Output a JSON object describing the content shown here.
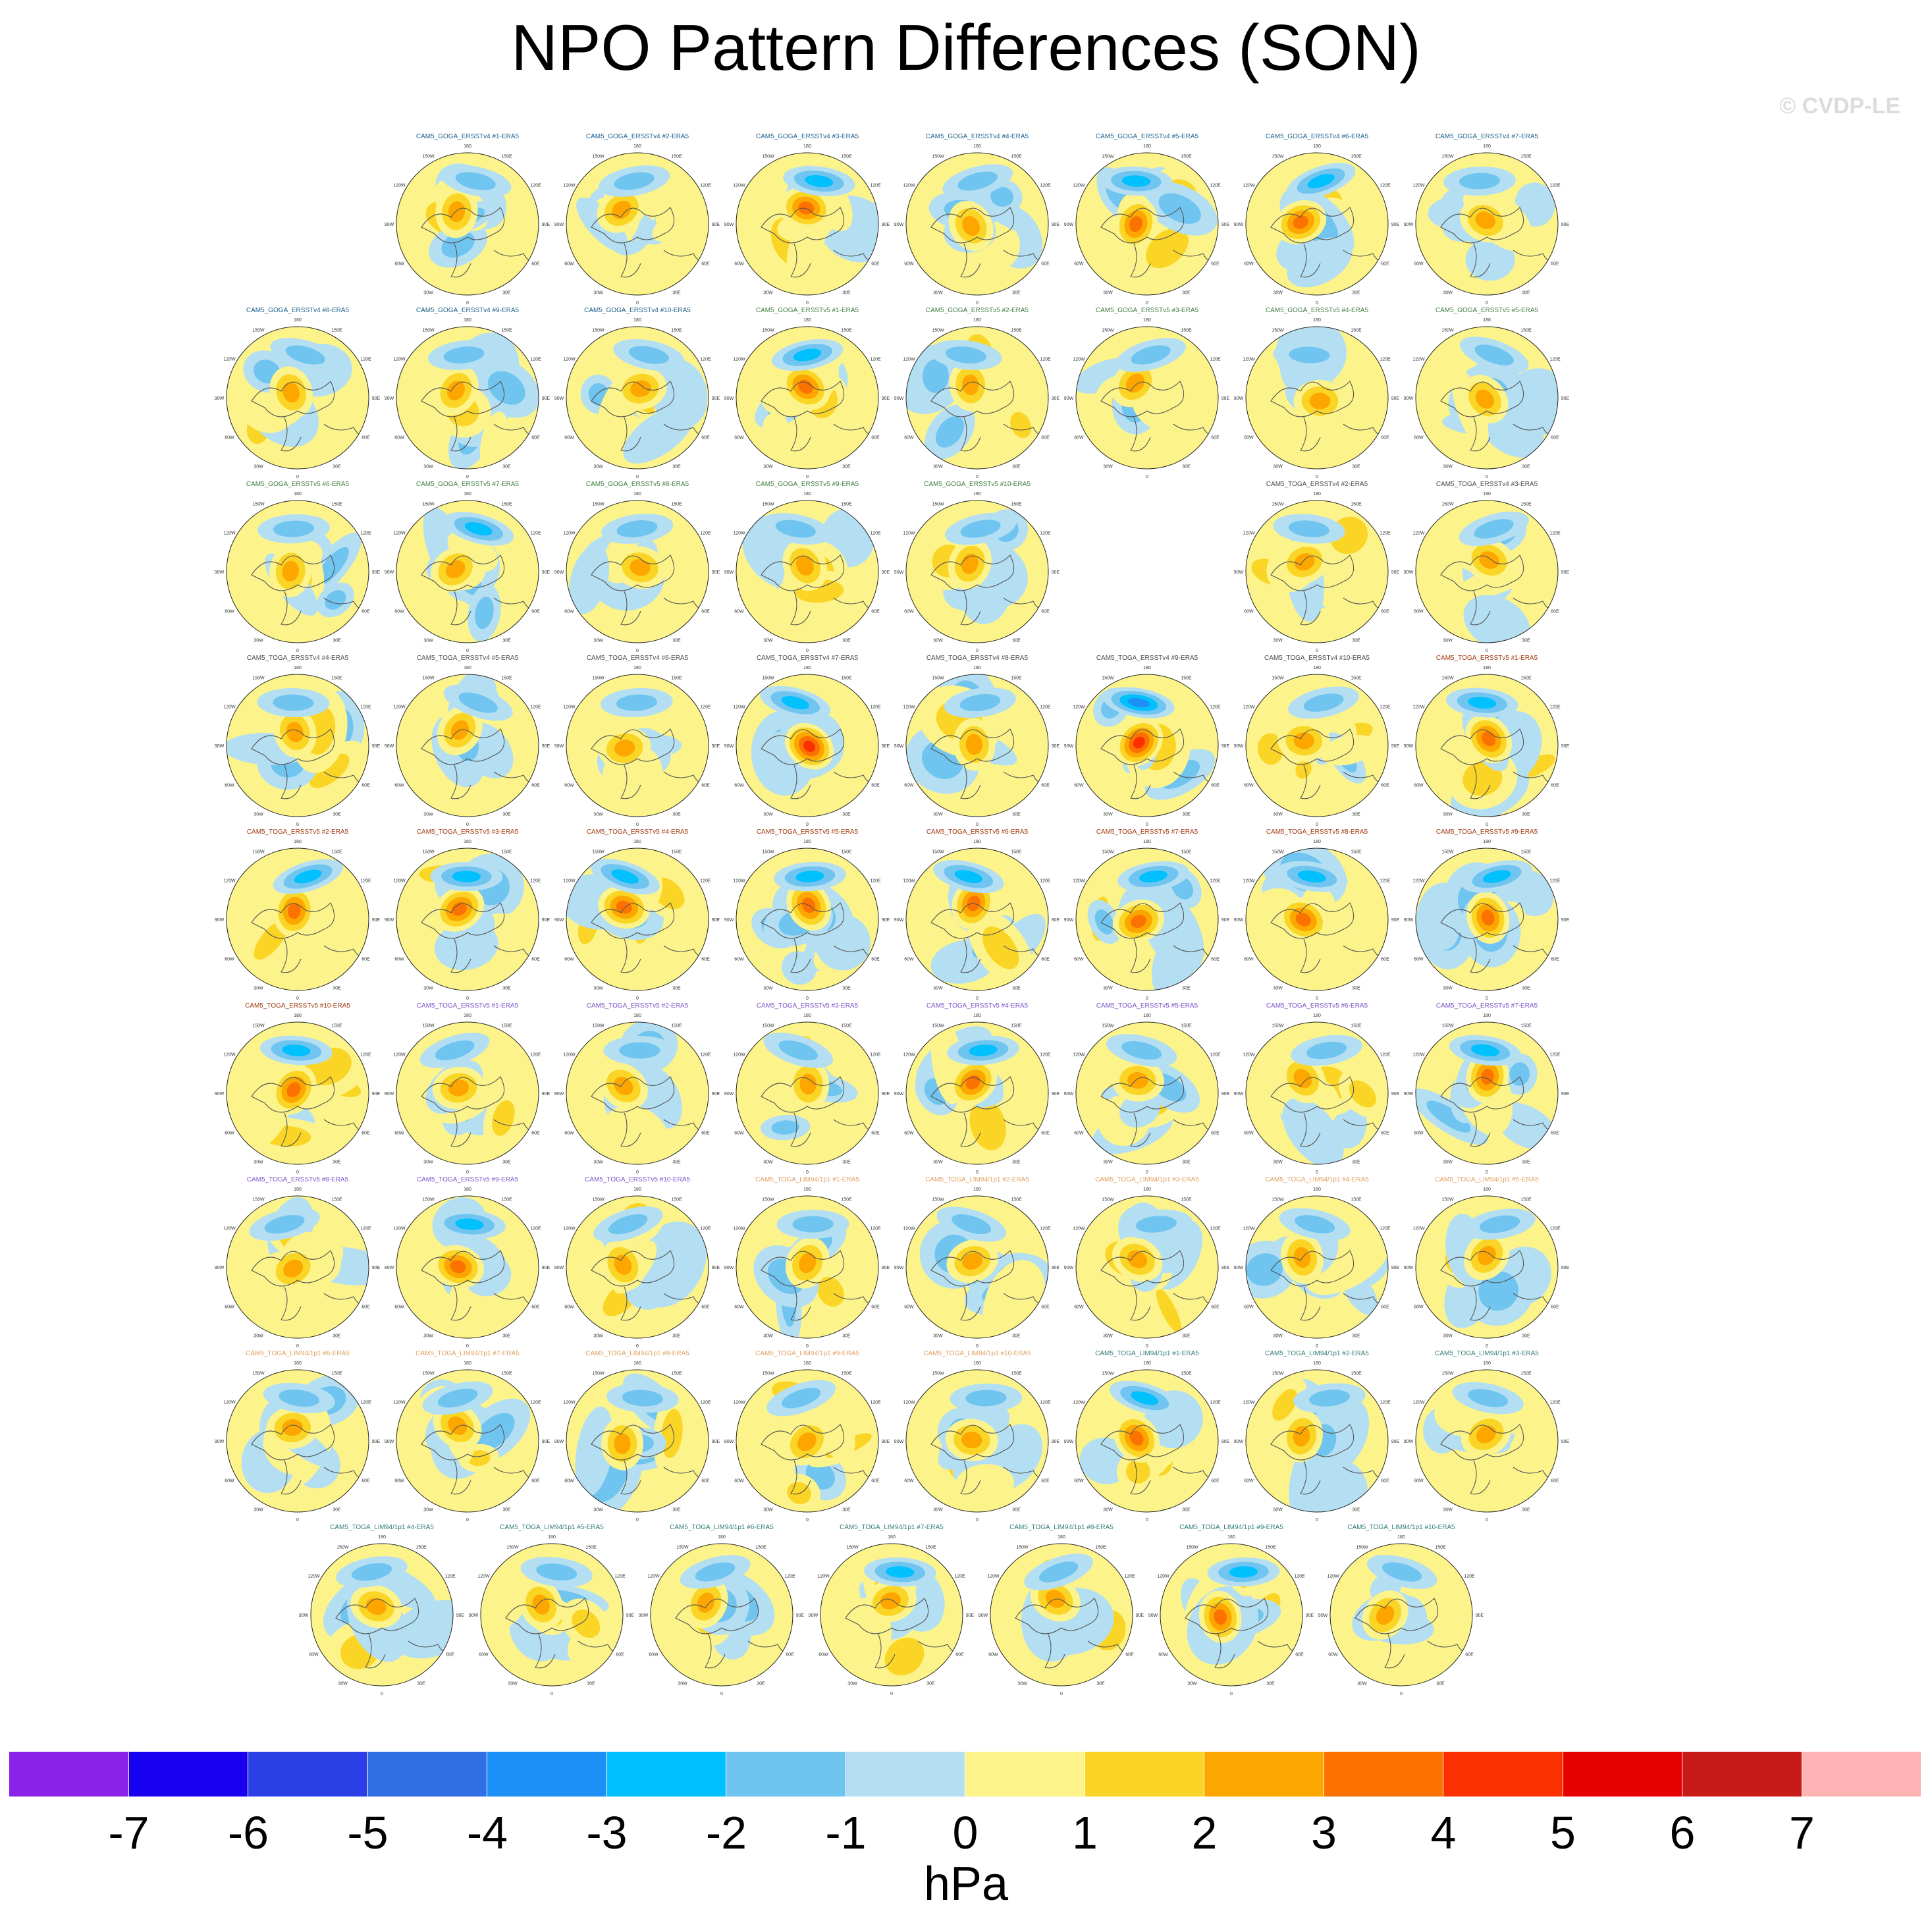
{
  "page": {
    "title": "NPO Pattern Differences (SON)",
    "watermark": "© CVDP-LE",
    "colorbar_unit": "hPa"
  },
  "chart_data": {
    "type": "polar-map-panels",
    "title": "NPO Pattern Differences (SON)",
    "variable": "NPO sea level pressure pattern difference vs ERA5",
    "season": "SON",
    "units": "hPa",
    "colorbar": {
      "levels": [
        -7,
        -6,
        -5,
        -4,
        -3,
        -2,
        -1,
        0,
        1,
        2,
        3,
        4,
        5,
        6,
        7
      ],
      "tick_labels": [
        "-7",
        "-6",
        "-5",
        "-4",
        "-3",
        "-2",
        "-1",
        "0",
        "1",
        "2",
        "3",
        "4",
        "5",
        "6",
        "7"
      ],
      "colors": [
        "#8a22e8",
        "#1800f0",
        "#2b3fe6",
        "#2f6ee4",
        "#1c90f6",
        "#00c0fd",
        "#70c4f0",
        "#b4dff2",
        "#fcf48a",
        "#fbd526",
        "#fda600",
        "#fb7200",
        "#fa3000",
        "#e70000",
        "#c91a1a",
        "#fdb3b3"
      ]
    },
    "map_meta": {
      "lon_labels": [
        "180",
        "150W",
        "150E",
        "120W",
        "120E",
        "90W",
        "90E",
        "60W",
        "60E",
        "30W",
        "30E",
        "0"
      ]
    },
    "panels": [
      {
        "label": "CAM5_GOGA_ERSSTv4 #1-ERA5",
        "label_color": "#1b5e8a",
        "seed": 1,
        "strength": 0.45
      },
      {
        "label": "CAM5_GOGA_ERSSTv4 #2-ERA5",
        "label_color": "#1b5e8a",
        "seed": 2,
        "strength": 0.35
      },
      {
        "label": "CAM5_GOGA_ERSSTv4 #3-ERA5",
        "label_color": "#1b5e8a",
        "seed": 3,
        "strength": 0.55
      },
      {
        "label": "CAM5_GOGA_ERSSTv4 #4-ERA5",
        "label_color": "#1b5e8a",
        "seed": 4,
        "strength": 0.3
      },
      {
        "label": "CAM5_GOGA_ERSSTv4 #5-ERA5",
        "label_color": "#1b5e8a",
        "seed": 5,
        "strength": 0.55
      },
      {
        "label": "CAM5_GOGA_ERSSTv4 #6-ERA5",
        "label_color": "#1b5e8a",
        "seed": 6,
        "strength": 0.6
      },
      {
        "label": "CAM5_GOGA_ERSSTv4 #7-ERA5",
        "label_color": "#1b5e8a",
        "seed": 7,
        "strength": 0.35
      },
      {
        "label": "CAM5_GOGA_ERSSTv4 #8-ERA5",
        "label_color": "#1b5e8a",
        "seed": 8,
        "strength": 0.45
      },
      {
        "label": "CAM5_GOGA_ERSSTv4 #9-ERA5",
        "label_color": "#1b5e8a",
        "seed": 9,
        "strength": 0.45
      },
      {
        "label": "CAM5_GOGA_ERSSTv4 #10-ERA5",
        "label_color": "#1b5e8a",
        "seed": 10,
        "strength": 0.35
      },
      {
        "label": "CAM5_GOGA_ERSSTv5 #1-ERA5",
        "label_color": "#3f7d3f",
        "seed": 11,
        "strength": 0.75
      },
      {
        "label": "CAM5_GOGA_ERSSTv5 #2-ERA5",
        "label_color": "#3f7d3f",
        "seed": 12,
        "strength": 0.35
      },
      {
        "label": "CAM5_GOGA_ERSSTv5 #3-ERA5",
        "label_color": "#3f7d3f",
        "seed": 13,
        "strength": 0.3
      },
      {
        "label": "CAM5_GOGA_ERSSTv5 #4-ERA5",
        "label_color": "#3f7d3f",
        "seed": 14,
        "strength": 0.4
      },
      {
        "label": "CAM5_GOGA_ERSSTv5 #5-ERA5",
        "label_color": "#3f7d3f",
        "seed": 15,
        "strength": 0.4
      },
      {
        "label": "CAM5_GOGA_ERSSTv5 #6-ERA5",
        "label_color": "#3f7d3f",
        "seed": 16,
        "strength": 0.4
      },
      {
        "label": "CAM5_GOGA_ERSSTv5 #7-ERA5",
        "label_color": "#3f7d3f",
        "seed": 17,
        "strength": 0.5
      },
      {
        "label": "CAM5_GOGA_ERSSTv5 #8-ERA5",
        "label_color": "#3f7d3f",
        "seed": 18,
        "strength": 0.3
      },
      {
        "label": "CAM5_GOGA_ERSSTv5 #9-ERA5",
        "label_color": "#3f7d3f",
        "seed": 19,
        "strength": 0.35
      },
      {
        "label": "CAM5_GOGA_ERSSTv5 #10-ERA5",
        "label_color": "#3f7d3f",
        "seed": 20,
        "strength": 0.35
      },
      {
        "label": "CAM5_TOGA_ERSSTv4 #2-ERA5",
        "label_color": "#4a4a4a",
        "seed": 21,
        "strength": 0.4
      },
      {
        "label": "CAM5_TOGA_ERSSTv4 #3-ERA5",
        "label_color": "#4a4a4a",
        "seed": 22,
        "strength": 0.35
      },
      {
        "label": "CAM5_TOGA_ERSSTv4 #4-ERA5",
        "label_color": "#4a4a4a",
        "seed": 23,
        "strength": 0.3
      },
      {
        "label": "CAM5_TOGA_ERSSTv4 #5-ERA5",
        "label_color": "#4a4a4a",
        "seed": 24,
        "strength": 0.3
      },
      {
        "label": "CAM5_TOGA_ERSSTv4 #6-ERA5",
        "label_color": "#4a4a4a",
        "seed": 25,
        "strength": 0.35
      },
      {
        "label": "CAM5_TOGA_ERSSTv4 #7-ERA5",
        "label_color": "#4a4a4a",
        "seed": 26,
        "strength": 0.8
      },
      {
        "label": "CAM5_TOGA_ERSSTv4 #8-ERA5",
        "label_color": "#4a4a4a",
        "seed": 27,
        "strength": 0.45
      },
      {
        "label": "CAM5_TOGA_ERSSTv4 #9-ERA5",
        "label_color": "#4a4a4a",
        "seed": 28,
        "strength": 0.9
      },
      {
        "label": "CAM5_TOGA_ERSSTv4 #10-ERA5",
        "label_color": "#4a4a4a",
        "seed": 29,
        "strength": 0.3
      },
      {
        "label": "CAM5_TOGA_ERSSTv5 #1-ERA5",
        "label_color": "#a0370f",
        "seed": 30,
        "strength": 0.55
      },
      {
        "label": "CAM5_TOGA_ERSSTv5 #2-ERA5",
        "label_color": "#a0370f",
        "seed": 31,
        "strength": 0.55
      },
      {
        "label": "CAM5_TOGA_ERSSTv5 #3-ERA5",
        "label_color": "#a0370f",
        "seed": 32,
        "strength": 0.55
      },
      {
        "label": "CAM5_TOGA_ERSSTv5 #4-ERA5",
        "label_color": "#a0370f",
        "seed": 33,
        "strength": 0.55
      },
      {
        "label": "CAM5_TOGA_ERSSTv5 #5-ERA5",
        "label_color": "#a0370f",
        "seed": 34,
        "strength": 0.55
      },
      {
        "label": "CAM5_TOGA_ERSSTv5 #6-ERA5",
        "label_color": "#a0370f",
        "seed": 35,
        "strength": 0.55
      },
      {
        "label": "CAM5_TOGA_ERSSTv5 #7-ERA5",
        "label_color": "#a0370f",
        "seed": 36,
        "strength": 0.55
      },
      {
        "label": "CAM5_TOGA_ERSSTv5 #8-ERA5",
        "label_color": "#a0370f",
        "seed": 37,
        "strength": 0.55
      },
      {
        "label": "CAM5_TOGA_ERSSTv5 #9-ERA5",
        "label_color": "#a0370f",
        "seed": 38,
        "strength": 0.55
      },
      {
        "label": "CAM5_TOGA_ERSSTv5 #10-ERA5",
        "label_color": "#a0370f",
        "seed": 39,
        "strength": 0.55
      },
      {
        "label": "CAM5_TOGA_ERSSTv5 #1-ERA5",
        "label_color": "#7b52c8",
        "seed": 40,
        "strength": 0.35
      },
      {
        "label": "CAM5_TOGA_ERSSTv5 #2-ERA5",
        "label_color": "#7b52c8",
        "seed": 41,
        "strength": 0.35
      },
      {
        "label": "CAM5_TOGA_ERSSTv5 #3-ERA5",
        "label_color": "#7b52c8",
        "seed": 42,
        "strength": 0.4
      },
      {
        "label": "CAM5_TOGA_ERSSTv5 #4-ERA5",
        "label_color": "#7b52c8",
        "seed": 43,
        "strength": 0.55
      },
      {
        "label": "CAM5_TOGA_ERSSTv5 #5-ERA5",
        "label_color": "#7b52c8",
        "seed": 44,
        "strength": 0.45
      },
      {
        "label": "CAM5_TOGA_ERSSTv5 #6-ERA5",
        "label_color": "#7b52c8",
        "seed": 45,
        "strength": 0.45
      },
      {
        "label": "CAM5_TOGA_ERSSTv5 #7-ERA5",
        "label_color": "#7b52c8",
        "seed": 46,
        "strength": 0.65
      },
      {
        "label": "CAM5_TOGA_ERSSTv5 #8-ERA5",
        "label_color": "#7b52c8",
        "seed": 47,
        "strength": 0.45
      },
      {
        "label": "CAM5_TOGA_ERSSTv5 #9-ERA5",
        "label_color": "#7b52c8",
        "seed": 48,
        "strength": 0.75
      },
      {
        "label": "CAM5_TOGA_ERSSTv5 #10-ERA5",
        "label_color": "#7b52c8",
        "seed": 49,
        "strength": 0.35
      },
      {
        "label": "CAM5_TOGA_LIM94/1p1 #1-ERA5",
        "label_color": "#e0a060",
        "seed": 50,
        "strength": 0.4
      },
      {
        "label": "CAM5_TOGA_LIM94/1p1 #2-ERA5",
        "label_color": "#e0a060",
        "seed": 51,
        "strength": 0.35
      },
      {
        "label": "CAM5_TOGA_LIM94/1p1 #3-ERA5",
        "label_color": "#e0a060",
        "seed": 52,
        "strength": 0.45
      },
      {
        "label": "CAM5_TOGA_LIM94/1p1 #4-ERA5",
        "label_color": "#e0a060",
        "seed": 53,
        "strength": 0.3
      },
      {
        "label": "CAM5_TOGA_LIM94/1p1 #5-ERA5",
        "label_color": "#e0a060",
        "seed": 54,
        "strength": 0.3
      },
      {
        "label": "CAM5_TOGA_LIM94/1p1 #6-ERA5",
        "label_color": "#e0a060",
        "seed": 55,
        "strength": 0.3
      },
      {
        "label": "CAM5_TOGA_LIM94/1p1 #7-ERA5",
        "label_color": "#e0a060",
        "seed": 56,
        "strength": 0.35
      },
      {
        "label": "CAM5_TOGA_LIM94/1p1 #8-ERA5",
        "label_color": "#e0a060",
        "seed": 57,
        "strength": 0.3
      },
      {
        "label": "CAM5_TOGA_LIM94/1p1 #9-ERA5",
        "label_color": "#e0a060",
        "seed": 58,
        "strength": 0.4
      },
      {
        "label": "CAM5_TOGA_LIM94/1p1 #10-ERA5",
        "label_color": "#e0a060",
        "seed": 59,
        "strength": 0.3
      },
      {
        "label": "CAM5_TOGA_LIM94/1p1 #1-ERA5",
        "label_color": "#2e7d76",
        "seed": 60,
        "strength": 0.65
      },
      {
        "label": "CAM5_TOGA_LIM94/1p1 #2-ERA5",
        "label_color": "#2e7d76",
        "seed": 61,
        "strength": 0.45
      },
      {
        "label": "CAM5_TOGA_LIM94/1p1 #3-ERA5",
        "label_color": "#2e7d76",
        "seed": 62,
        "strength": 0.3
      },
      {
        "label": "CAM5_TOGA_LIM94/1p1 #4-ERA5",
        "label_color": "#2e7d76",
        "seed": 63,
        "strength": 0.3
      },
      {
        "label": "CAM5_TOGA_LIM94/1p1 #5-ERA5",
        "label_color": "#2e7d76",
        "seed": 64,
        "strength": 0.4
      },
      {
        "label": "CAM5_TOGA_LIM94/1p1 #6-ERA5",
        "label_color": "#2e7d76",
        "seed": 65,
        "strength": 0.35
      },
      {
        "label": "CAM5_TOGA_LIM94/1p1 #7-ERA5",
        "label_color": "#2e7d76",
        "seed": 66,
        "strength": 0.5
      },
      {
        "label": "CAM5_TOGA_LIM94/1p1 #8-ERA5",
        "label_color": "#2e7d76",
        "seed": 67,
        "strength": 0.35
      },
      {
        "label": "CAM5_TOGA_LIM94/1p1 #9-ERA5",
        "label_color": "#2e7d76",
        "seed": 68,
        "strength": 0.55
      },
      {
        "label": "CAM5_TOGA_LIM94/1p1 #10-ERA5",
        "label_color": "#2e7d76",
        "seed": 69,
        "strength": 0.35
      }
    ]
  }
}
